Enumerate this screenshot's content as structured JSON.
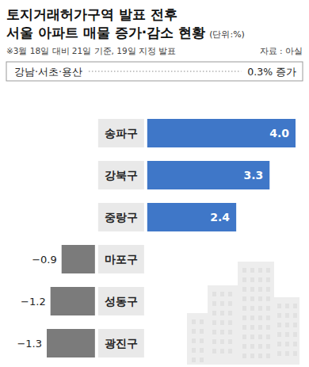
{
  "chart_data": {
    "type": "bar",
    "orientation": "horizontal",
    "title": [
      "토지거래허가구역 발표 전후",
      "서울 아파트 매물 증가·감소 현황"
    ],
    "unit": "(단위:%)",
    "note": "※3월 18일 대비 21일 기준, 19일 지정 발표",
    "source": "자료 : 아실",
    "annotation": {
      "label": "강남·서초·용산",
      "text": "0.3% 증가"
    },
    "categories": [
      "송파구",
      "강북구",
      "중랑구",
      "마포구",
      "성동구",
      "광진구"
    ],
    "values": [
      4.0,
      3.3,
      2.4,
      -0.9,
      -1.2,
      -1.3
    ],
    "value_labels": [
      "4.0",
      "3.3",
      "2.4",
      "−0.9",
      "−1.2",
      "−1.3"
    ],
    "colors": [
      "#3f77c8",
      "#3f77c8",
      "#3f77c8",
      "#7b7b7b",
      "#7b7b7b",
      "#7b7b7b"
    ],
    "xlim": [
      -1.3,
      4.0
    ],
    "data_labels": true,
    "tick_labels": false,
    "grid": false
  }
}
